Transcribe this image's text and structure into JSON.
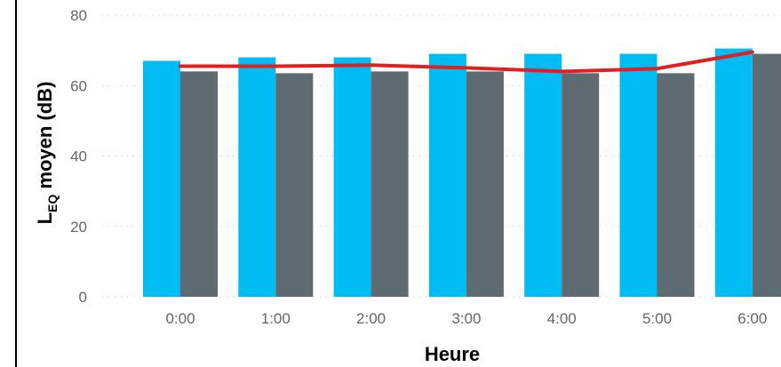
{
  "chart_data": {
    "type": "bar",
    "xlabel": "Heure",
    "ylabel": {
      "main": "L",
      "subscript": "EQ",
      "rest": " moyen (dB)"
    },
    "ylim": [
      0,
      80
    ],
    "yticks": [
      "0",
      "20",
      "40",
      "60",
      "80"
    ],
    "categories": [
      "0:00",
      "1:00",
      "2:00",
      "3:00",
      "4:00",
      "5:00",
      "6:00"
    ],
    "grid": true,
    "legend": "none",
    "series": [
      {
        "type": "bar",
        "color": "#00bcf2",
        "values": [
          67,
          68,
          68,
          69,
          69,
          69,
          70.5
        ]
      },
      {
        "type": "bar",
        "color": "#5f6b73",
        "values": [
          64,
          63.5,
          64,
          64,
          63.5,
          63.5,
          69
        ]
      },
      {
        "type": "line",
        "color": "#e02020",
        "values": [
          65.5,
          65.5,
          65.8,
          65,
          64,
          64.8,
          69.5
        ]
      }
    ]
  }
}
